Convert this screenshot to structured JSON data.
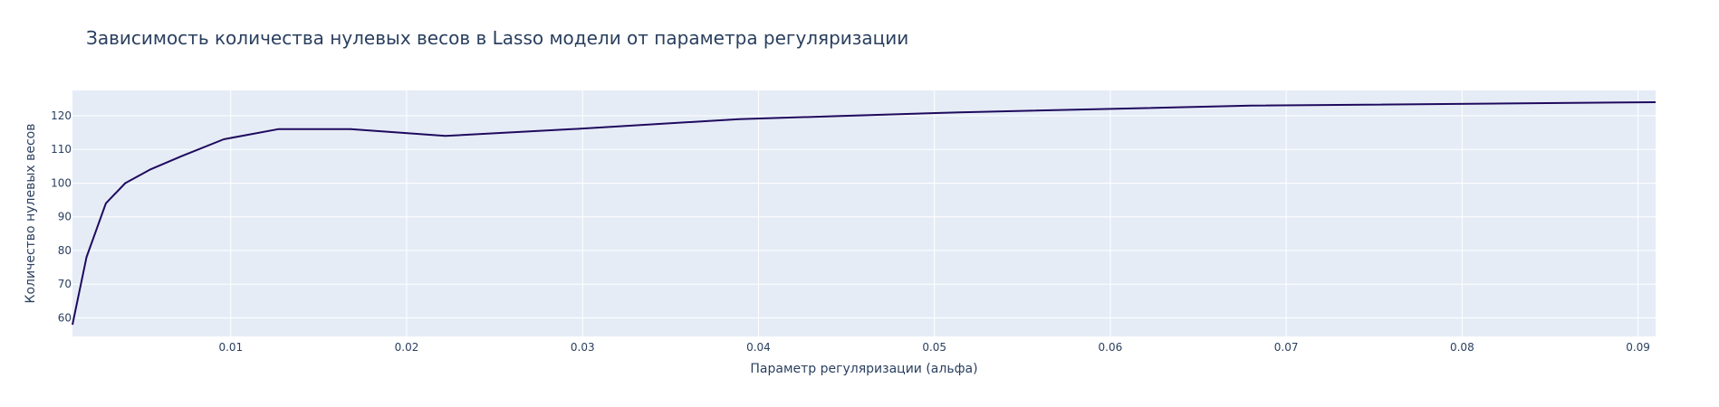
{
  "chart_data": {
    "type": "line",
    "title": "Зависимость количества нулевых весов в Lasso модели от параметра регуляризации",
    "xlabel": "Параметр регуляризации (альфа)",
    "ylabel": "Количество нулевых весов",
    "xlim": [
      0.001,
      0.091
    ],
    "ylim": [
      54.5,
      127.5
    ],
    "x_ticks": [
      0.01,
      0.02,
      0.03,
      0.04,
      0.05,
      0.06,
      0.07,
      0.08,
      0.09
    ],
    "y_ticks": [
      60,
      70,
      80,
      90,
      100,
      110,
      120
    ],
    "grid": true,
    "colors": {
      "line": "#1f0a5e",
      "plot_bg": "#e5ecf6",
      "grid": "#ffffff",
      "text": "#2a3f5f"
    },
    "series": [
      {
        "x": [
          0.001,
          0.0018,
          0.0029,
          0.004,
          0.0054,
          0.0072,
          0.0096,
          0.0127,
          0.0168,
          0.0222,
          0.0294,
          0.0389,
          0.0514,
          0.068,
          0.091
        ],
        "values": [
          58,
          78,
          94,
          100,
          104,
          108,
          113,
          116,
          116,
          114,
          116,
          119,
          121,
          123,
          124
        ]
      }
    ]
  }
}
